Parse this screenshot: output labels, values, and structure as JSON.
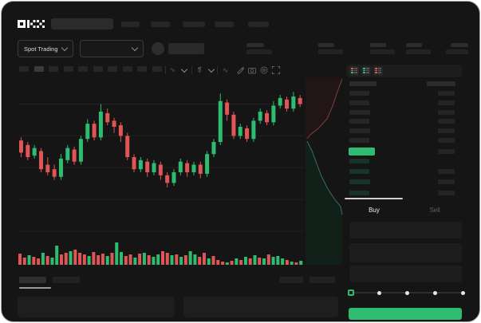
{
  "brand": "OKX",
  "subheader": {
    "market_selector_label": "Spot Trading"
  },
  "trade_panel": {
    "buy_tab_label": "Buy",
    "sell_tab_label": "Sell",
    "slider_stops": 5,
    "slider_handle_index": 0
  },
  "colors": {
    "green": "#2ebd70",
    "red": "#e05555",
    "bid_bar": "#173427",
    "ask_placeholder": "#262626",
    "amount_placeholder": "#242424",
    "depth_ask_fill": "#221517",
    "depth_ask_line": "#7a4242",
    "depth_bid_fill": "#12201a",
    "depth_bid_line": "#3c6e5f",
    "grid": "#212121",
    "panel_bg": "#1d1d1d"
  },
  "order_book": {
    "header": {
      "left_w": 34,
      "right_w": 36
    },
    "asks": [
      {
        "l": 25,
        "r": 21
      },
      {
        "l": 25,
        "r": 21
      },
      {
        "l": 26,
        "r": 21
      },
      {
        "l": 25,
        "r": 21
      },
      {
        "l": 26,
        "r": 21
      },
      {
        "l": 25,
        "r": 21
      }
    ],
    "last_price_row": {
      "left_w": 33,
      "right_w": 21,
      "highlight": "#2ebd70"
    },
    "bids": [
      {
        "l": 25,
        "r": 0
      },
      {
        "l": 25,
        "r": 21
      },
      {
        "l": 26,
        "r": 21
      },
      {
        "l": 25,
        "r": 21
      }
    ]
  },
  "chart_data": {
    "type": "candlestick",
    "title": "",
    "xlabel": "",
    "ylabel": "",
    "value_scale": [
      0,
      100
    ],
    "grid": true,
    "gridline_values": [
      85,
      64,
      43,
      22,
      1
    ],
    "candles_ochl": [
      [
        61,
        53,
        63,
        50
      ],
      [
        58,
        50,
        60,
        48
      ],
      [
        51,
        56,
        58,
        49
      ],
      [
        54,
        42,
        56,
        40
      ],
      [
        45,
        40,
        50,
        38
      ],
      [
        42,
        37,
        45,
        35
      ],
      [
        37,
        49,
        52,
        35
      ],
      [
        48,
        56,
        58,
        46
      ],
      [
        55,
        47,
        57,
        45
      ],
      [
        47,
        62,
        64,
        45
      ],
      [
        62,
        72,
        75,
        60
      ],
      [
        72,
        63,
        74,
        61
      ],
      [
        63,
        80,
        85,
        61
      ],
      [
        79,
        73,
        82,
        71
      ],
      [
        74,
        70,
        76,
        66
      ],
      [
        71,
        64,
        73,
        60
      ],
      [
        64,
        50,
        66,
        48
      ],
      [
        50,
        42,
        52,
        40
      ],
      [
        42,
        48,
        50,
        40
      ],
      [
        47,
        40,
        49,
        37
      ],
      [
        40,
        46,
        48,
        38
      ],
      [
        45,
        38,
        47,
        35
      ],
      [
        38,
        33,
        40,
        30
      ],
      [
        33,
        40,
        42,
        31
      ],
      [
        40,
        47,
        49,
        38
      ],
      [
        46,
        40,
        48,
        37
      ],
      [
        40,
        45,
        47,
        38
      ],
      [
        45,
        39,
        47,
        36
      ],
      [
        39,
        52,
        54,
        37
      ],
      [
        52,
        60,
        62,
        50
      ],
      [
        60,
        87,
        92,
        58
      ],
      [
        86,
        78,
        88,
        74
      ],
      [
        78,
        64,
        80,
        62
      ],
      [
        64,
        70,
        72,
        62
      ],
      [
        69,
        62,
        71,
        60
      ],
      [
        62,
        74,
        76,
        60
      ],
      [
        74,
        80,
        82,
        72
      ],
      [
        79,
        73,
        81,
        71
      ],
      [
        73,
        84,
        87,
        71
      ],
      [
        84,
        89,
        91,
        82
      ],
      [
        88,
        82,
        90,
        80
      ],
      [
        82,
        90,
        93,
        80
      ],
      [
        89,
        85,
        91,
        83
      ]
    ],
    "volume": [
      [
        14,
        "r"
      ],
      [
        9,
        "r"
      ],
      [
        12,
        "g"
      ],
      [
        10,
        "r"
      ],
      [
        8,
        "r"
      ],
      [
        15,
        "g"
      ],
      [
        11,
        "r"
      ],
      [
        9,
        "g"
      ],
      [
        24,
        "g"
      ],
      [
        13,
        "r"
      ],
      [
        15,
        "r"
      ],
      [
        17,
        "g"
      ],
      [
        19,
        "r"
      ],
      [
        15,
        "r"
      ],
      [
        13,
        "r"
      ],
      [
        11,
        "g"
      ],
      [
        16,
        "r"
      ],
      [
        12,
        "r"
      ],
      [
        14,
        "r"
      ],
      [
        11,
        "g"
      ],
      [
        15,
        "r"
      ],
      [
        28,
        "g"
      ],
      [
        16,
        "g"
      ],
      [
        11,
        "r"
      ],
      [
        13,
        "r"
      ],
      [
        9,
        "g"
      ],
      [
        14,
        "r"
      ],
      [
        15,
        "g"
      ],
      [
        12,
        "r"
      ],
      [
        10,
        "g"
      ],
      [
        13,
        "g"
      ],
      [
        17,
        "r"
      ],
      [
        15,
        "r"
      ],
      [
        12,
        "g"
      ],
      [
        13,
        "r"
      ],
      [
        10,
        "g"
      ],
      [
        12,
        "r"
      ],
      [
        17,
        "g"
      ],
      [
        13,
        "g"
      ],
      [
        10,
        "r"
      ],
      [
        15,
        "r"
      ],
      [
        8,
        "g"
      ],
      [
        11,
        "r"
      ],
      [
        6,
        "r"
      ],
      [
        4,
        "r"
      ],
      [
        3,
        "g"
      ],
      [
        5,
        "r"
      ],
      [
        8,
        "g"
      ],
      [
        6,
        "r"
      ],
      [
        10,
        "g"
      ],
      [
        8,
        "r"
      ],
      [
        12,
        "g"
      ],
      [
        9,
        "r"
      ],
      [
        8,
        "g"
      ],
      [
        13,
        "r"
      ],
      [
        10,
        "g"
      ],
      [
        11,
        "g"
      ],
      [
        8,
        "g"
      ],
      [
        6,
        "r"
      ],
      [
        4,
        "g"
      ],
      [
        3,
        "r"
      ],
      [
        5,
        "g"
      ]
    ],
    "depth": {
      "asks_curve": [
        [
          46,
          2
        ],
        [
          40,
          18
        ],
        [
          34,
          36
        ],
        [
          27,
          52
        ],
        [
          16,
          64
        ],
        [
          6,
          72
        ],
        [
          2,
          77
        ]
      ],
      "bids_curve": [
        [
          2,
          80
        ],
        [
          8,
          92
        ],
        [
          14,
          108
        ],
        [
          20,
          124
        ],
        [
          28,
          140
        ],
        [
          36,
          152
        ],
        [
          44,
          162
        ],
        [
          46,
          172
        ]
      ]
    }
  }
}
